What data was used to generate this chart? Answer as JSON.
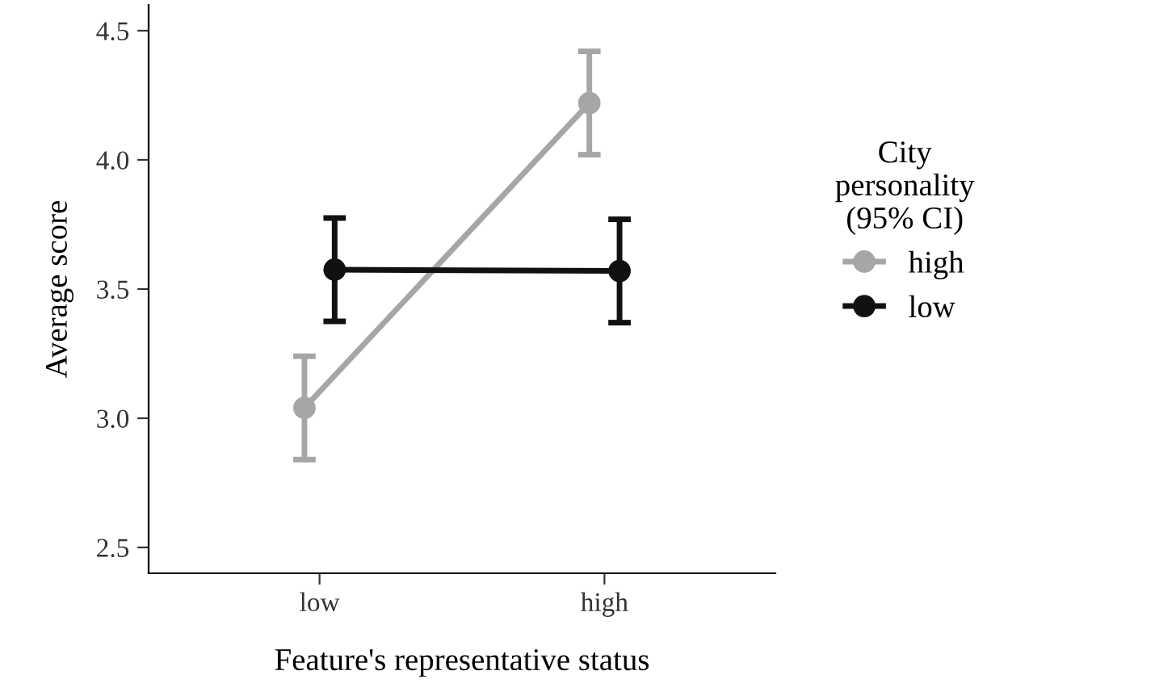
{
  "chart_data": {
    "type": "line",
    "xlabel": "Feature's representative status",
    "ylabel": "Average score",
    "legend_title": "City\npersonality\n(95% CI)",
    "categories": [
      "low",
      "high"
    ],
    "series": [
      {
        "name": "high",
        "color": "#a6a6a6",
        "values": [
          3.04,
          4.22
        ],
        "errors": [
          [
            2.84,
            3.24
          ],
          [
            4.02,
            4.42
          ]
        ]
      },
      {
        "name": "low",
        "color": "#111111",
        "values": [
          3.575,
          3.57
        ],
        "errors": [
          [
            3.375,
            3.775
          ],
          [
            3.37,
            3.77
          ]
        ]
      }
    ],
    "ylim": [
      2.4,
      4.6
    ],
    "yticks": [
      2.5,
      {
        "value": 3,
        "label": "3.0"
      },
      3.5,
      {
        "value": 4,
        "label": "4.0"
      },
      4.5
    ],
    "grid": false,
    "legend": "right",
    "marker": "circle",
    "line_style": "solid"
  }
}
